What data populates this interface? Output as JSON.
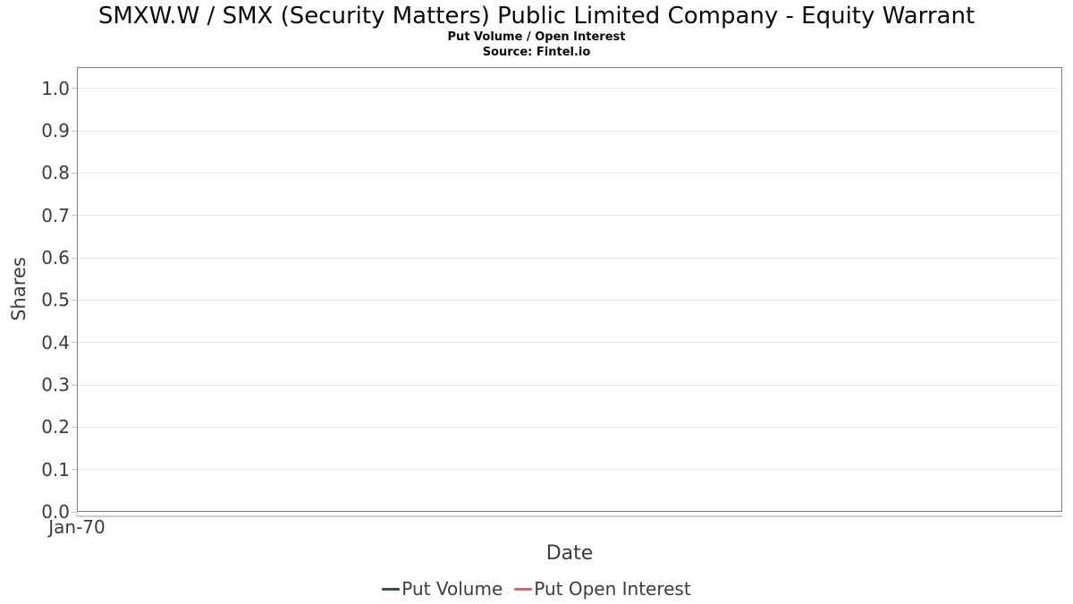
{
  "header": {
    "title": "SMXW.W / SMX (Security Matters) Public Limited Company - Equity Warrant",
    "subtitle": "Put Volume / Open Interest",
    "source": "Source: Fintel.io"
  },
  "chart_data": {
    "type": "line",
    "title": "SMXW.W / SMX (Security Matters) Public Limited Company - Equity Warrant",
    "subtitle": "Put Volume / Open Interest",
    "source": "Source: Fintel.io",
    "xlabel": "Date",
    "ylabel": "Shares",
    "ylim": [
      0,
      1.05
    ],
    "yticks": [
      0,
      0.1,
      0.2,
      0.3,
      0.4,
      0.5,
      0.6,
      0.7,
      0.8,
      0.9,
      1.0
    ],
    "ytick_labels": [
      "0.0",
      "0.1",
      "0.2",
      "0.3",
      "0.4",
      "0.5",
      "0.6",
      "0.7",
      "0.8",
      "0.9",
      "1.0"
    ],
    "xtick_labels": [
      "Jan-70"
    ],
    "xtick_positions": [
      0
    ],
    "grid": true,
    "legend_position": "bottom",
    "series": [
      {
        "name": "Put Volume",
        "color": "#2d5a3c",
        "x": [],
        "values": []
      },
      {
        "name": "Put Open Interest",
        "color": "#f55c5c",
        "x": [],
        "values": []
      }
    ]
  },
  "colors": {
    "grid": "#e6e6e6",
    "plot_border": "#7d7d7d",
    "axis_line": "#cccccc",
    "tick": "#c8c8c8",
    "axis_text": "#3c3c3c",
    "title_text": "#0a0a0a"
  }
}
